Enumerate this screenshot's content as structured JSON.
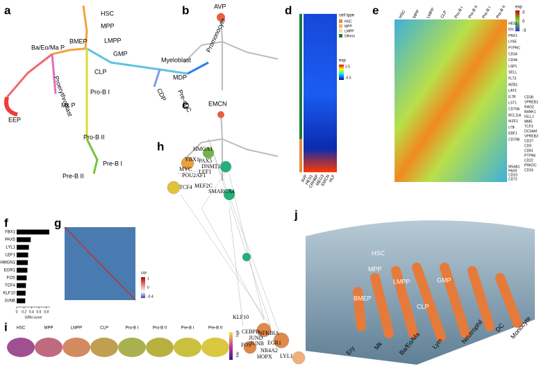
{
  "chart_data": {
    "type": "bar",
    "orientation": "horizontal",
    "xlabel": "GRN score",
    "categories": [
      "YBX1",
      "PAX5",
      "LYL1",
      "LEF1",
      "HMGN1",
      "EGR1",
      "FOS",
      "TCF4",
      "KLF10",
      "JUNB"
    ],
    "values": [
      0.88,
      0.38,
      0.33,
      0.31,
      0.3,
      0.29,
      0.27,
      0.25,
      0.24,
      0.23
    ],
    "color": "#000000",
    "xlim": [
      0,
      0.9
    ],
    "xticks": [
      0,
      0.2,
      0.4,
      0.6,
      0.8
    ]
  },
  "panels": {
    "a": {
      "letter": "a",
      "labels": [
        "HSC",
        "MPP",
        "LMPP",
        "GMP",
        "BMEP",
        "Ba/Eo/Ma P",
        "Myeloblast",
        "Promonocyte",
        "MDP",
        "CDP",
        "Pre-cDC",
        "CLP",
        "Pro-B I",
        "Pro-B II",
        "Pre-B I",
        "Pre-B II",
        "Proerythroblast",
        "Mk P",
        "EEP"
      ]
    },
    "b": {
      "letter": "b",
      "gene": "AVP"
    },
    "c": {
      "letter": "c",
      "gene": "EMCN"
    },
    "d": {
      "letter": "d",
      "columns": [
        "AVP",
        "HES1",
        "CRHBP",
        "MEG3",
        "EMCN",
        "HLF"
      ],
      "legend_title": "cell type",
      "legend": [
        "HSC",
        "MPP",
        "LMPP",
        "Others"
      ],
      "colorbar_title": "exp",
      "colorbar_ticks": [
        "2.5",
        "-0.5"
      ]
    },
    "e": {
      "letter": "e",
      "columns": [
        "HSC",
        "MPP",
        "LMPP",
        "CLP",
        "Pro-B I",
        "Pro-B II",
        "Pre-B I",
        "Pre-B II"
      ],
      "colorbar_title": "exp",
      "colorbar_ticks": [
        "3",
        "0",
        "-3"
      ],
      "genes": [
        "HES1",
        "ID1",
        "PBX1",
        "LY6E",
        "PTPRC",
        "CD34",
        "CD44",
        "LSP1",
        "SELL",
        "FLT3",
        "MZB1",
        "LAT2",
        "IL7R",
        "LST1",
        "CD79A",
        "BCL11A",
        "IKZF1",
        "LTB",
        "EBF1",
        "CD79B",
        "MS4A1",
        "PAX5",
        "CD19",
        "CD72"
      ],
      "genes2": [
        "CD38",
        "VPREB1",
        "RAG2",
        "BANK1",
        "IGLL1",
        "MME",
        "TCF3",
        "DCSAM",
        "VPREB3",
        "CD27",
        "CD9",
        "CD81",
        "PTPN6",
        "CD22",
        "PRKDC",
        "CD24"
      ]
    },
    "g": {
      "letter": "g",
      "colorbar_title": "cor",
      "colorbar_ticks": [
        "1",
        "0",
        "-0.4"
      ]
    },
    "h": {
      "letter": "h",
      "genes": [
        "HMGA1",
        "YBX1",
        "PAX5",
        "DNMT1",
        "LEF1",
        "MYC",
        "POU2AF1",
        "TCF4",
        "MEF2C",
        "SMARCA4",
        "KLF10",
        "CEBPB",
        "NFKBIA",
        "JUND",
        "JUNB",
        "EGR1",
        "FOS",
        "NR4A2",
        "HOPX",
        "LYL1"
      ]
    },
    "f": {
      "letter": "f"
    },
    "i": {
      "letter": "i",
      "stages": [
        "HSC",
        "MPP",
        "LMPP",
        "CLP",
        "Pro-B I",
        "Pro-B II",
        "Pre-B I",
        "Pre-B II"
      ],
      "scale": [
        "high",
        "low"
      ]
    },
    "j": {
      "letter": "j",
      "labels": [
        "HSC",
        "MPP",
        "LMPP",
        "GMP",
        "BMEP",
        "CLP",
        "Ery",
        "Mk",
        "Ba/Eo/Ma",
        "Lym",
        "Neutrophil",
        "DC",
        "Monocyte"
      ]
    }
  }
}
